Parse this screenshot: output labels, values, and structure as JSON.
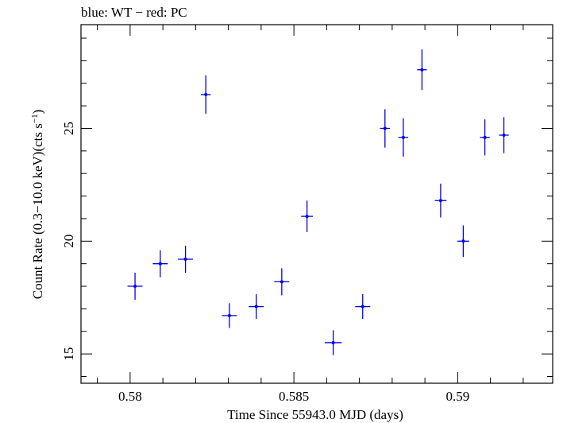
{
  "chart_data": {
    "type": "scatter",
    "title": "blue: WT − red: PC",
    "xlabel": "Time Since 55943.0 MJD (days)",
    "ylabel": "Count Rate (0.3−10.0 keV)(cts s",
    "ylabel_sup": "−1",
    "ylabel_end": ")",
    "xlim": [
      0.5785,
      0.5929
    ],
    "ylim": [
      13.7,
      29.6
    ],
    "x_ticks": [
      {
        "value": 0.58,
        "label": "0.58"
      },
      {
        "value": 0.585,
        "label": "0.585"
      },
      {
        "value": 0.59,
        "label": "0.59"
      }
    ],
    "y_ticks": [
      {
        "value": 15,
        "label": "15"
      },
      {
        "value": 20,
        "label": "20"
      },
      {
        "value": 25,
        "label": "25"
      }
    ],
    "x_minor_step": 0.001,
    "y_minor_step": 1,
    "grid": false,
    "series": [
      {
        "name": "WT",
        "color": "#0000ee",
        "points": [
          {
            "x": 0.58015,
            "y": 18.0,
            "xerr": 0.00023,
            "yerr": 0.6
          },
          {
            "x": 0.58092,
            "y": 19.0,
            "xerr": 0.00023,
            "yerr": 0.6
          },
          {
            "x": 0.58169,
            "y": 19.2,
            "xerr": 0.00023,
            "yerr": 0.6
          },
          {
            "x": 0.58231,
            "y": 26.5,
            "xerr": 0.00015,
            "yerr": 0.85
          },
          {
            "x": 0.58303,
            "y": 16.7,
            "xerr": 0.00023,
            "yerr": 0.55
          },
          {
            "x": 0.58385,
            "y": 17.1,
            "xerr": 0.00023,
            "yerr": 0.55
          },
          {
            "x": 0.58463,
            "y": 18.2,
            "xerr": 0.00023,
            "yerr": 0.6
          },
          {
            "x": 0.5854,
            "y": 21.1,
            "xerr": 0.00018,
            "yerr": 0.7
          },
          {
            "x": 0.5862,
            "y": 15.5,
            "xerr": 0.00026,
            "yerr": 0.55
          },
          {
            "x": 0.5871,
            "y": 17.1,
            "xerr": 0.00023,
            "yerr": 0.55
          },
          {
            "x": 0.58778,
            "y": 25.0,
            "xerr": 0.00015,
            "yerr": 0.85
          },
          {
            "x": 0.58834,
            "y": 24.6,
            "xerr": 0.00015,
            "yerr": 0.85
          },
          {
            "x": 0.58891,
            "y": 27.6,
            "xerr": 0.00015,
            "yerr": 0.9
          },
          {
            "x": 0.58948,
            "y": 21.8,
            "xerr": 0.00018,
            "yerr": 0.75
          },
          {
            "x": 0.59017,
            "y": 20.0,
            "xerr": 0.00018,
            "yerr": 0.7
          },
          {
            "x": 0.59083,
            "y": 24.6,
            "xerr": 0.00015,
            "yerr": 0.8
          },
          {
            "x": 0.59141,
            "y": 24.7,
            "xerr": 0.00015,
            "yerr": 0.8
          }
        ]
      }
    ]
  }
}
